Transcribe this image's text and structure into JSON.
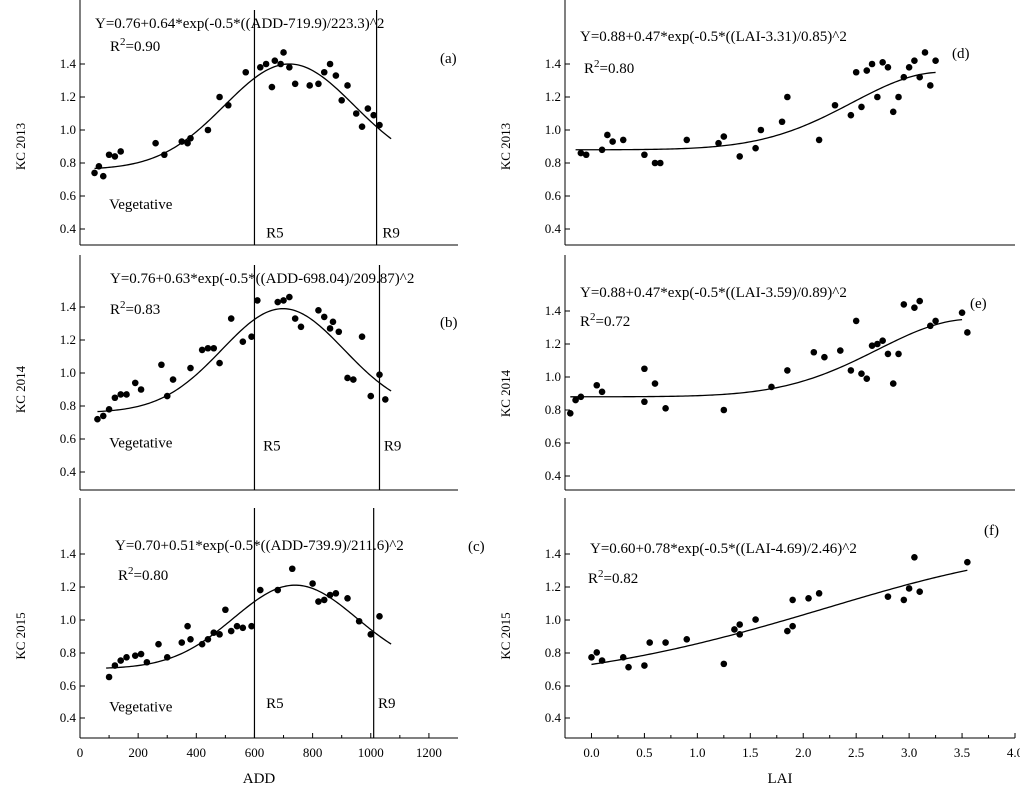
{
  "chart_data": [
    {
      "id": "a",
      "type": "scatter",
      "panel_label": "(a)",
      "ylabel": "KC 2013",
      "xlabel": "",
      "xlim": [
        0,
        1300
      ],
      "ylim": [
        0.25,
        1.55
      ],
      "yticks": [
        "0.4",
        "0.6",
        "0.8",
        "1.0",
        "1.2",
        "1.4"
      ],
      "xticks": [],
      "equation": "Y=0.76+0.64*exp(-0.5*((ADD-719.9)/223.3)^2",
      "r2_prefix": "R",
      "r2_sup": "2",
      "r2_value": "=0.90",
      "fit": {
        "var": "ADD",
        "y0": 0.76,
        "a": 0.64,
        "xc": 719.9,
        "w": 223.3,
        "from": 50,
        "to": 1070
      },
      "stage_lines": [
        600,
        1020
      ],
      "stage_labels": [
        {
          "text": "Vegetative",
          "x": 100,
          "y": 0.52
        },
        {
          "text": "R5",
          "x": 640,
          "y": 0.35
        },
        {
          "text": "R9",
          "x": 1040,
          "y": 0.35
        }
      ],
      "x": [
        50,
        65,
        80,
        100,
        120,
        140,
        260,
        290,
        350,
        370,
        380,
        440,
        480,
        510,
        570,
        620,
        640,
        660,
        670,
        690,
        700,
        720,
        740,
        790,
        820,
        840,
        860,
        880,
        900,
        920,
        950,
        970,
        990,
        1010,
        1030
      ],
      "y": [
        0.74,
        0.78,
        0.72,
        0.85,
        0.84,
        0.87,
        0.92,
        0.85,
        0.93,
        0.92,
        0.95,
        1.0,
        1.2,
        1.15,
        1.35,
        1.38,
        1.4,
        1.26,
        1.42,
        1.4,
        1.47,
        1.38,
        1.28,
        1.27,
        1.28,
        1.35,
        1.4,
        1.33,
        1.18,
        1.27,
        1.1,
        1.02,
        1.13,
        1.09,
        1.03
      ]
    },
    {
      "id": "b",
      "type": "scatter",
      "panel_label": "(b)",
      "ylabel": "KC 2014",
      "xlabel": "",
      "xlim": [
        0,
        1300
      ],
      "ylim": [
        0.25,
        1.55
      ],
      "yticks": [
        "0.4",
        "0.6",
        "0.8",
        "1.0",
        "1.2",
        "1.4"
      ],
      "xticks": [],
      "equation": "Y=0.76+0.63*exp(-0.5*((ADD-698.04)/209.87)^2",
      "r2_prefix": "R",
      "r2_sup": "2",
      "r2_value": "=0.83",
      "fit": {
        "var": "ADD",
        "y0": 0.76,
        "a": 0.63,
        "xc": 698.04,
        "w": 209.87,
        "from": 60,
        "to": 1070
      },
      "stage_lines": [
        600,
        1030
      ],
      "stage_labels": [
        {
          "text": "Vegetative",
          "x": 100,
          "y": 0.55
        },
        {
          "text": "R5",
          "x": 630,
          "y": 0.53
        },
        {
          "text": "R9",
          "x": 1045,
          "y": 0.53
        }
      ],
      "x": [
        60,
        80,
        100,
        120,
        140,
        160,
        190,
        210,
        280,
        300,
        320,
        380,
        420,
        440,
        460,
        480,
        520,
        560,
        590,
        610,
        680,
        700,
        720,
        740,
        760,
        820,
        840,
        860,
        870,
        890,
        920,
        940,
        970,
        1000,
        1030,
        1050
      ],
      "y": [
        0.72,
        0.74,
        0.78,
        0.85,
        0.87,
        0.87,
        0.94,
        0.9,
        1.05,
        0.86,
        0.96,
        1.03,
        1.14,
        1.15,
        1.15,
        1.06,
        1.33,
        1.19,
        1.22,
        1.44,
        1.43,
        1.44,
        1.46,
        1.33,
        1.28,
        1.38,
        1.34,
        1.27,
        1.31,
        1.25,
        0.97,
        0.96,
        1.22,
        0.86,
        0.99,
        0.84
      ]
    },
    {
      "id": "c",
      "type": "scatter",
      "panel_label": "(c)",
      "ylabel": "KC 2015",
      "xlabel": "ADD",
      "xlim": [
        0,
        1300
      ],
      "ylim": [
        0.25,
        1.55
      ],
      "yticks": [
        "0.4",
        "0.6",
        "0.8",
        "1.0",
        "1.2",
        "1.4"
      ],
      "xticks": [
        "0",
        "200",
        "400",
        "600",
        "800",
        "1000",
        "1200"
      ],
      "equation": "Y=0.70+0.51*exp(-0.5*((ADD-739.9)/211.6)^2",
      "r2_prefix": "R",
      "r2_sup": "2",
      "r2_value": "=0.80",
      "fit": {
        "var": "ADD",
        "y0": 0.7,
        "a": 0.51,
        "xc": 739.9,
        "w": 211.6,
        "from": 90,
        "to": 1070
      },
      "stage_lines": [
        600,
        1010
      ],
      "stage_labels": [
        {
          "text": "Vegetative",
          "x": 100,
          "y": 0.44
        },
        {
          "text": "R5",
          "x": 640,
          "y": 0.46
        },
        {
          "text": "R9",
          "x": 1025,
          "y": 0.46
        }
      ],
      "x": [
        100,
        120,
        140,
        160,
        190,
        210,
        230,
        270,
        300,
        350,
        370,
        380,
        420,
        440,
        460,
        480,
        500,
        520,
        540,
        560,
        590,
        620,
        680,
        730,
        800,
        820,
        840,
        860,
        880,
        920,
        960,
        1000,
        1030
      ],
      "y": [
        0.65,
        0.72,
        0.75,
        0.77,
        0.78,
        0.79,
        0.74,
        0.85,
        0.77,
        0.86,
        0.96,
        0.88,
        0.85,
        0.88,
        0.92,
        0.91,
        1.06,
        0.93,
        0.96,
        0.95,
        0.96,
        1.18,
        1.18,
        1.31,
        1.22,
        1.11,
        1.12,
        1.15,
        1.16,
        1.13,
        0.99,
        0.91,
        1.02
      ]
    },
    {
      "id": "d",
      "type": "scatter",
      "panel_label": "(d)",
      "ylabel": "KC 2013",
      "xlabel": "",
      "xlim": [
        -0.25,
        4.0
      ],
      "ylim": [
        0.25,
        1.55
      ],
      "yticks": [
        "0.4",
        "0.6",
        "0.8",
        "1.0",
        "1.2",
        "1.4"
      ],
      "xticks": [],
      "equation": "Y=0.88+0.47*exp(-0.5*((LAI-3.31)/0.85)^2",
      "r2_prefix": "R",
      "r2_sup": "2",
      "r2_value": "=0.80",
      "fit": {
        "var": "LAI",
        "y0": 0.88,
        "a": 0.47,
        "xc": 3.31,
        "w": 0.85,
        "from": -0.15,
        "to": 3.25
      },
      "stage_lines": [],
      "stage_labels": [],
      "x": [
        -0.1,
        -0.05,
        0.1,
        0.15,
        0.2,
        0.3,
        0.5,
        0.6,
        0.65,
        0.9,
        1.2,
        1.25,
        1.4,
        1.55,
        1.6,
        1.8,
        1.85,
        2.15,
        2.3,
        2.45,
        2.5,
        2.55,
        2.6,
        2.65,
        2.7,
        2.75,
        2.8,
        2.85,
        2.9,
        2.95,
        3.0,
        3.05,
        3.1,
        3.15,
        3.2,
        3.25
      ],
      "y": [
        0.86,
        0.85,
        0.88,
        0.97,
        0.93,
        0.94,
        0.85,
        0.8,
        0.8,
        0.94,
        0.92,
        0.96,
        0.84,
        0.89,
        1.0,
        1.05,
        1.2,
        0.94,
        1.15,
        1.09,
        1.35,
        1.14,
        1.36,
        1.4,
        1.2,
        1.41,
        1.38,
        1.11,
        1.2,
        1.32,
        1.38,
        1.42,
        1.32,
        1.47,
        1.27,
        1.42
      ]
    },
    {
      "id": "e",
      "type": "scatter",
      "panel_label": "(e)",
      "ylabel": "KC 2014",
      "xlabel": "",
      "xlim": [
        -0.25,
        4.0
      ],
      "ylim": [
        0.25,
        1.55
      ],
      "yticks": [
        "0.4",
        "0.6",
        "0.8",
        "1.0",
        "1.2",
        "1.4"
      ],
      "xticks": [],
      "equation": "Y=0.88+0.47*exp(-0.5*((LAI-3.59)/0.89)^2",
      "r2_prefix": "R",
      "r2_sup": "2",
      "r2_value": "=0.72",
      "fit": {
        "var": "LAI",
        "y0": 0.88,
        "a": 0.47,
        "xc": 3.59,
        "w": 0.89,
        "from": -0.2,
        "to": 3.5
      },
      "stage_lines": [],
      "stage_labels": [],
      "x": [
        -0.2,
        -0.15,
        -0.1,
        0.05,
        0.1,
        0.5,
        0.5,
        0.6,
        0.7,
        1.25,
        1.7,
        1.85,
        2.1,
        2.2,
        2.35,
        2.45,
        2.5,
        2.55,
        2.6,
        2.65,
        2.7,
        2.75,
        2.8,
        2.85,
        2.9,
        2.95,
        3.05,
        3.1,
        3.2,
        3.25,
        3.5,
        3.55
      ],
      "y": [
        0.78,
        0.86,
        0.88,
        0.95,
        0.91,
        1.05,
        0.85,
        0.96,
        0.81,
        0.8,
        0.94,
        1.04,
        1.15,
        1.12,
        1.16,
        1.04,
        1.34,
        1.02,
        0.99,
        1.19,
        1.2,
        1.22,
        1.14,
        0.96,
        1.14,
        1.44,
        1.42,
        1.46,
        1.31,
        1.34,
        1.39,
        1.27
      ]
    },
    {
      "id": "f",
      "type": "scatter",
      "panel_label": "(f)",
      "ylabel": "KC 2015",
      "xlabel": "LAI",
      "xlim": [
        -0.25,
        4.0
      ],
      "ylim": [
        0.25,
        1.55
      ],
      "yticks": [
        "0.4",
        "0.6",
        "0.8",
        "1.0",
        "1.2",
        "1.4"
      ],
      "xticks": [
        "0.0",
        "0.5",
        "1.0",
        "1.5",
        "2.0",
        "2.5",
        "3.0",
        "3.5",
        "4.0"
      ],
      "equation": "Y=0.60+0.78*exp(-0.5*((LAI-4.69)/2.46)^2",
      "r2_prefix": "R",
      "r2_sup": "2",
      "r2_value": "=0.82",
      "fit": {
        "var": "LAI",
        "y0": 0.6,
        "a": 0.78,
        "xc": 4.69,
        "w": 2.46,
        "from": 0.0,
        "to": 3.55
      },
      "stage_lines": [],
      "stage_labels": [],
      "x": [
        0.0,
        0.05,
        0.1,
        0.3,
        0.35,
        0.5,
        0.55,
        0.7,
        0.9,
        1.25,
        1.35,
        1.4,
        1.4,
        1.55,
        1.85,
        1.9,
        1.9,
        2.05,
        2.15,
        2.8,
        2.95,
        3.0,
        3.05,
        3.1,
        3.55
      ],
      "y": [
        0.77,
        0.8,
        0.75,
        0.77,
        0.71,
        0.72,
        0.86,
        0.86,
        0.88,
        0.73,
        0.94,
        0.97,
        0.91,
        1.0,
        0.93,
        1.12,
        0.96,
        1.13,
        1.16,
        1.14,
        1.12,
        1.19,
        1.38,
        1.17,
        1.35
      ]
    }
  ]
}
